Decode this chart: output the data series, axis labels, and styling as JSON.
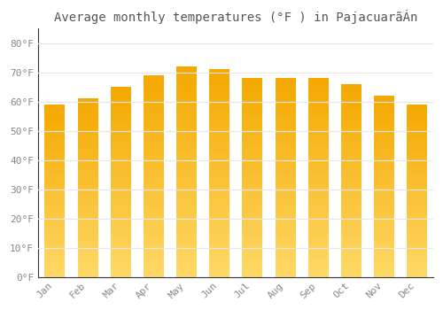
{
  "title": "Average monthly temperatures (°F ) in PajacuarãÁn",
  "months": [
    "Jan",
    "Feb",
    "Mar",
    "Apr",
    "May",
    "Jun",
    "Jul",
    "Aug",
    "Sep",
    "Oct",
    "Nov",
    "Dec"
  ],
  "values": [
    59,
    61,
    65,
    69,
    72,
    71,
    68,
    68,
    68,
    66,
    62,
    59
  ],
  "bar_color_dark": "#F5A800",
  "bar_color_light": "#FFD966",
  "background_color": "#FFFFFF",
  "grid_color": "#E8E8E8",
  "tick_color": "#888888",
  "title_color": "#555555",
  "yticks": [
    0,
    10,
    20,
    30,
    40,
    50,
    60,
    70,
    80
  ],
  "ytick_labels": [
    "0°F",
    "10°F",
    "20°F",
    "30°F",
    "40°F",
    "50°F",
    "60°F",
    "70°F",
    "80°F"
  ],
  "ylim": [
    0,
    85
  ],
  "font_size_title": 10,
  "font_size_ticks": 8,
  "bar_width": 0.6
}
